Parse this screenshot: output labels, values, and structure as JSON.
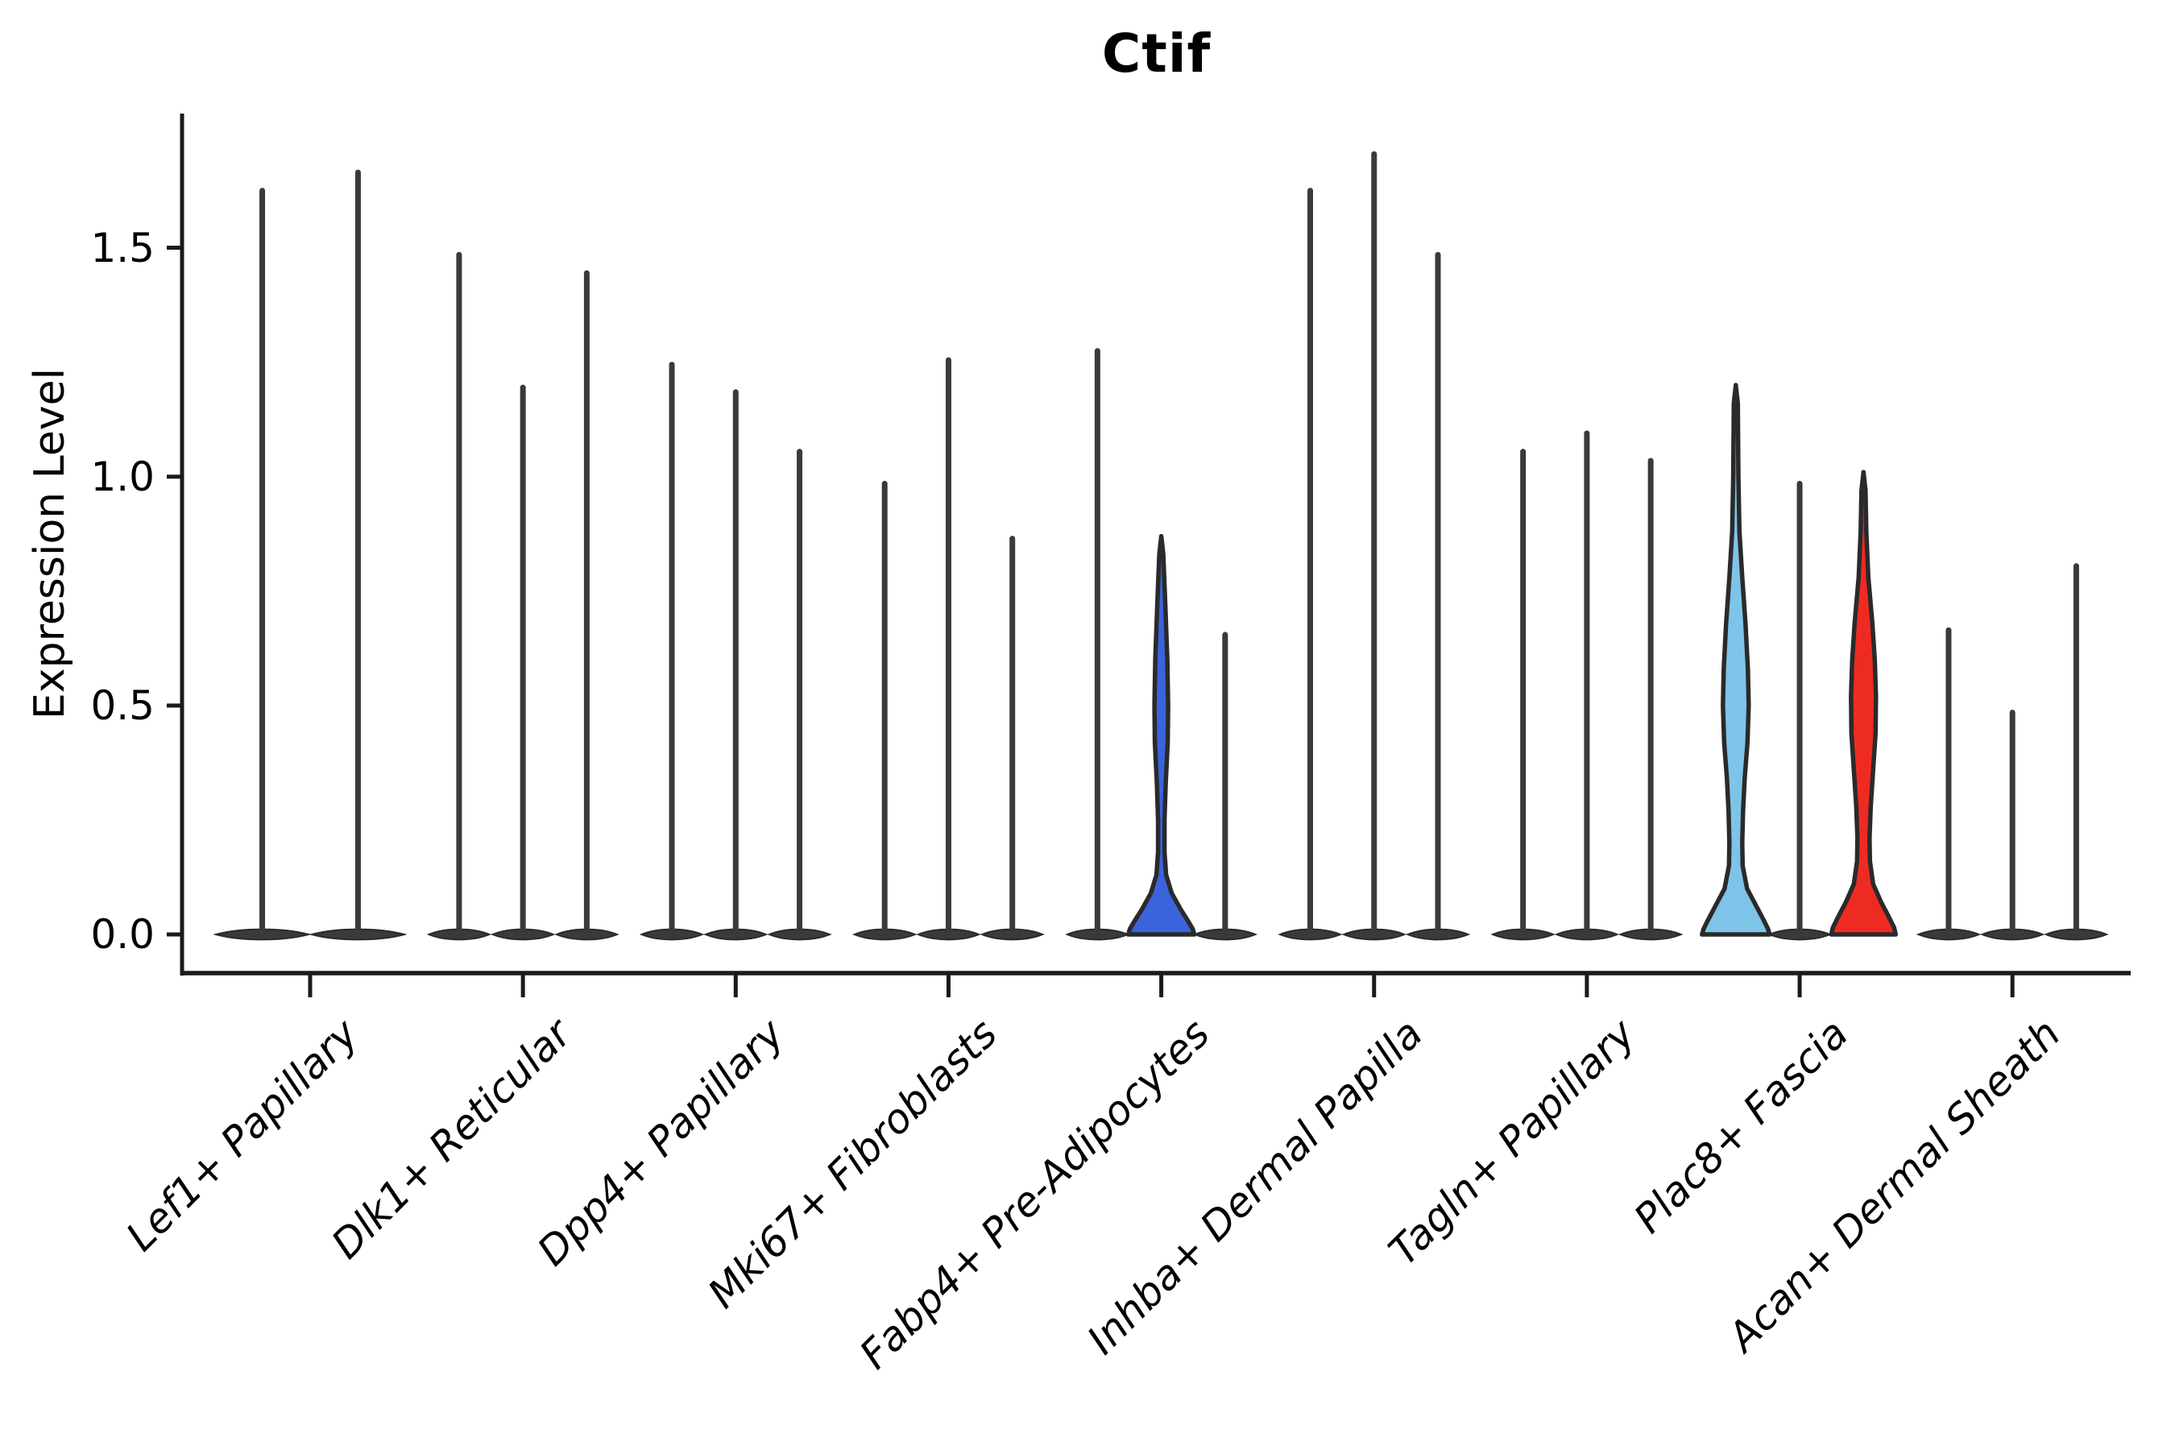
{
  "title": "Ctif",
  "ylabel": "Expression Level",
  "colors": {
    "axis": "#1a1a1a",
    "violin_outline": "#2a2a2a",
    "thin_violin": "#3a3a3a",
    "blue_fill": "#3b63dc",
    "lightblue_fill": "#7ec4e8",
    "red_fill": "#ee2b23"
  },
  "chart_data": {
    "type": "violin",
    "title": "Ctif",
    "xlabel": "",
    "ylabel": "Expression Level",
    "yticks": [
      0.0,
      0.5,
      1.0,
      1.5
    ],
    "ylim": [
      -0.09,
      1.79
    ],
    "grid": false,
    "legend": "none",
    "categories": [
      "Lef1+ Papillary",
      "Dlk1+ Reticular",
      "Dpp4+ Papillary",
      "Mki67+ Fibroblasts",
      "Fabp4+ Pre-Adipocytes",
      "Inhba+ Dermal Papilla",
      "Tagln+ Papillary",
      "Plac8+ Fascia",
      "Acan+ Dermal Sheath"
    ],
    "description": "Violin plot of Ctif expression; each category holds 2-3 violins (split groups). Most violins collapse to a thin spike with a flat base at 0; values are violin maxima (expression ceiling per split).",
    "groups": [
      {
        "label": "Lef1+ Papillary",
        "violins": [
          {
            "max": 1.63
          },
          {
            "max": 1.67
          }
        ]
      },
      {
        "label": "Dlk1+ Reticular",
        "violins": [
          {
            "max": 1.49
          },
          {
            "max": 1.2
          },
          {
            "max": 1.45
          }
        ]
      },
      {
        "label": "Dpp4+ Papillary",
        "violins": [
          {
            "max": 1.25
          },
          {
            "max": 1.19
          },
          {
            "max": 1.06
          }
        ]
      },
      {
        "label": "Mki67+ Fibroblasts",
        "violins": [
          {
            "max": 0.99
          },
          {
            "max": 1.26
          },
          {
            "max": 0.87
          }
        ]
      },
      {
        "label": "Fabp4+ Pre-Adipocytes",
        "violins": [
          {
            "max": 1.28
          },
          {
            "max": 0.87,
            "fill": "#3b63dc",
            "profile": [
              [
                0.87,
                0
              ],
              [
                0.83,
                2.5
              ],
              [
                0.72,
                5
              ],
              [
                0.6,
                7.5
              ],
              [
                0.5,
                8.5
              ],
              [
                0.42,
                8
              ],
              [
                0.33,
                5.5
              ],
              [
                0.25,
                4
              ],
              [
                0.18,
                4
              ],
              [
                0.13,
                6
              ],
              [
                0.09,
                13
              ],
              [
                0.055,
                24
              ],
              [
                0.03,
                33
              ],
              [
                0.012,
                39
              ],
              [
                0,
                41
              ]
            ]
          },
          {
            "max": 0.66
          }
        ]
      },
      {
        "label": "Inhba+ Dermal Papilla",
        "violins": [
          {
            "max": 1.63
          },
          {
            "max": 1.71
          },
          {
            "max": 1.49
          }
        ]
      },
      {
        "label": "Tagln+ Papillary",
        "violins": [
          {
            "max": 1.06
          },
          {
            "max": 1.1
          },
          {
            "max": 1.04
          }
        ]
      },
      {
        "label": "Plac8+ Fascia",
        "violins": [
          {
            "max": 1.2,
            "fill": "#7ec4e8",
            "profile": [
              [
                1.2,
                0
              ],
              [
                1.16,
                2.5
              ],
              [
                1.0,
                3.2
              ],
              [
                0.88,
                4.5
              ],
              [
                0.78,
                8
              ],
              [
                0.68,
                12
              ],
              [
                0.58,
                15
              ],
              [
                0.5,
                16
              ],
              [
                0.42,
                14.5
              ],
              [
                0.34,
                11
              ],
              [
                0.27,
                9
              ],
              [
                0.2,
                8
              ],
              [
                0.15,
                8.5
              ],
              [
                0.1,
                14
              ],
              [
                0.06,
                26
              ],
              [
                0.03,
                35
              ],
              [
                0.012,
                40
              ],
              [
                0,
                42
              ]
            ]
          },
          {
            "max": 0.99
          },
          {
            "max": 1.01,
            "fill": "#ee2b23",
            "profile": [
              [
                1.01,
                0
              ],
              [
                0.97,
                2.5
              ],
              [
                0.88,
                3.5
              ],
              [
                0.78,
                6
              ],
              [
                0.68,
                11
              ],
              [
                0.6,
                14
              ],
              [
                0.52,
                15.5
              ],
              [
                0.44,
                15
              ],
              [
                0.36,
                12
              ],
              [
                0.28,
                9
              ],
              [
                0.21,
                7.5
              ],
              [
                0.16,
                8
              ],
              [
                0.11,
                12
              ],
              [
                0.07,
                22
              ],
              [
                0.04,
                31
              ],
              [
                0.015,
                38
              ],
              [
                0,
                40
              ]
            ]
          }
        ]
      },
      {
        "label": "Acan+ Dermal Sheath",
        "violins": [
          {
            "max": 0.67
          },
          {
            "max": 0.49
          },
          {
            "max": 0.81
          }
        ]
      }
    ]
  }
}
